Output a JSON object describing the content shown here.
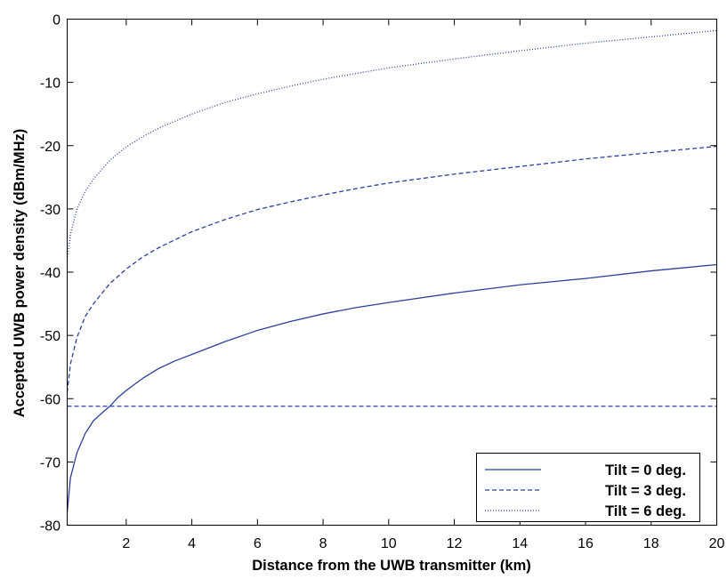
{
  "chart_data": {
    "type": "line",
    "xlabel": "Distance from the UWB transmitter  (km)",
    "ylabel": "Accepted UWB power density (dBm/MHz)",
    "xlim": [
      0.2,
      20
    ],
    "ylim": [
      -80,
      0
    ],
    "x_ticks": [
      2,
      4,
      6,
      8,
      10,
      12,
      14,
      16,
      18,
      20
    ],
    "y_ticks": [
      0,
      -10,
      -20,
      -30,
      -40,
      -50,
      -60,
      -70,
      -80
    ],
    "grid": false,
    "legend_position": "bottom-right",
    "line_color": "#2e3f9c",
    "series": [
      {
        "name": "Tilt = 0 deg.",
        "style": "solid",
        "x": [
          0.2,
          0.3,
          0.5,
          0.75,
          1,
          1.25,
          1.5,
          1.75,
          2,
          2.5,
          3,
          3.5,
          4,
          5,
          6,
          7,
          8,
          9,
          10,
          12,
          14,
          16,
          18,
          20
        ],
        "values": [
          -78,
          -72.5,
          -68.5,
          -65.5,
          -63.5,
          -62.3,
          -61.2,
          -59.8,
          -58.7,
          -56.8,
          -55.2,
          -54,
          -53,
          -51,
          -49.2,
          -47.8,
          -46.6,
          -45.6,
          -44.8,
          -43.3,
          -42,
          -41,
          -39.8,
          -38.8
        ]
      },
      {
        "name": "Tilt = 3 deg.",
        "style": "dashed",
        "x": [
          0.2,
          0.3,
          0.5,
          0.75,
          1,
          1.5,
          2,
          2.5,
          3,
          4,
          5,
          6,
          7,
          8,
          9,
          10,
          12,
          14,
          16,
          18,
          20
        ],
        "values": [
          -59,
          -54.5,
          -50.3,
          -47,
          -45,
          -41.8,
          -39.5,
          -37.6,
          -36.1,
          -33.6,
          -31.7,
          -30.1,
          -28.9,
          -27.8,
          -26.8,
          -25.9,
          -24.5,
          -23.3,
          -22.1,
          -21.1,
          -20.1
        ]
      },
      {
        "name": "Tilt = 6 deg.",
        "style": "dotted",
        "x": [
          0.2,
          0.3,
          0.5,
          0.75,
          1,
          1.5,
          2,
          2.5,
          3,
          4,
          5,
          6,
          7,
          8,
          9,
          10,
          12,
          14,
          16,
          18,
          20
        ],
        "values": [
          -38,
          -34,
          -30,
          -27.2,
          -25.3,
          -22.3,
          -20.2,
          -18.6,
          -17.2,
          -15,
          -13.2,
          -11.8,
          -10.6,
          -9.5,
          -8.6,
          -7.7,
          -6.3,
          -5,
          -3.8,
          -2.8,
          -1.8
        ]
      }
    ],
    "reference_line": {
      "style": "dashed",
      "y": -61.2
    }
  }
}
